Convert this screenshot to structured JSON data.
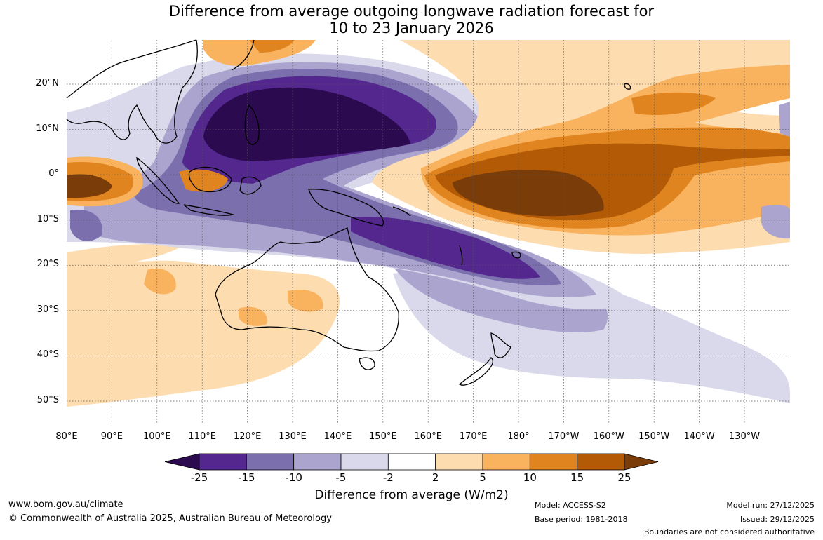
{
  "title": {
    "line1": "Difference from average outgoing longwave radiation forecast for",
    "line2": "10 to 23 January 2026"
  },
  "map": {
    "lat_labels": [
      "20°N",
      "10°N",
      "0°",
      "10°S",
      "20°S",
      "30°S",
      "40°S",
      "50°S"
    ],
    "lon_labels": [
      "80°E",
      "90°E",
      "100°E",
      "110°E",
      "120°E",
      "130°E",
      "140°E",
      "150°E",
      "160°E",
      "170°E",
      "180°",
      "170°W",
      "160°W",
      "150°W",
      "140°W",
      "130°W"
    ],
    "lat_values": [
      20,
      10,
      0,
      -10,
      -20,
      -30,
      -40,
      -50
    ],
    "lon_values": [
      80,
      90,
      100,
      110,
      120,
      130,
      140,
      150,
      160,
      170,
      180,
      190,
      200,
      210,
      220,
      230
    ],
    "extent": {
      "lon_min": 80,
      "lon_max": 240,
      "lat_min": -55,
      "lat_max": 30
    },
    "anomaly_regions": [
      {
        "name": "western-pacific-negative",
        "level": -25,
        "lon": 133,
        "lat": 10
      },
      {
        "name": "coral-sea-negative",
        "level": -15,
        "lon": 165,
        "lat": -16
      },
      {
        "name": "central-pacific-positive",
        "level": 25,
        "lon": 178,
        "lat": -4
      },
      {
        "name": "indian-ocean-positive",
        "level": 25,
        "lon": 84,
        "lat": -3
      }
    ]
  },
  "colorbar": {
    "ticks": [
      "-25",
      "-15",
      "-10",
      "-5",
      "-2",
      "2",
      "5",
      "10",
      "15",
      "25"
    ],
    "colors": [
      "#2b0a4f",
      "#54278f",
      "#7b6fae",
      "#aaa4cf",
      "#d9d9eb",
      "#ffffff",
      "#fddcb0",
      "#f9b25e",
      "#e0841f",
      "#b35a06",
      "#7a3d0a"
    ],
    "label": "Difference from average (W/m2)"
  },
  "footer": {
    "website": "www.bom.gov.au/climate",
    "copyright": "© Commonwealth of Australia 2025, Australian Bureau of Meteorology",
    "model": "Model: ACCESS-S2",
    "base_period": "Base period: 1981-2018",
    "model_run": "Model run: 27/12/2025",
    "issued": "Issued: 29/12/2025",
    "boundaries": "Boundaries are not considered authoritative"
  }
}
